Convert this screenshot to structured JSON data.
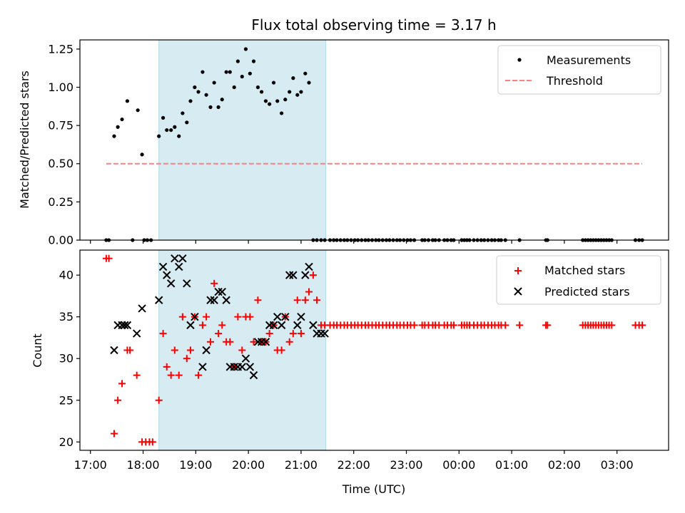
{
  "chart_data": [
    {
      "type": "scatter",
      "title": "Flux total observing time = 3.17 h",
      "xlabel": "",
      "ylabel": "Matched/Predicted stars",
      "xaxis_unit": "hours since 17:00 UTC",
      "xlim": [
        -0.2,
        10.98
      ],
      "ylim": [
        0,
        1.31
      ],
      "yticks": [
        "0.00",
        "0.25",
        "0.50",
        "0.75",
        "1.00",
        "1.25"
      ],
      "ytick_values": [
        0,
        0.25,
        0.5,
        0.75,
        1.0,
        1.25
      ],
      "shaded_span": [
        1.3,
        4.47
      ],
      "shade_color": "#add8e6",
      "legend_position": "top-right",
      "series": [
        {
          "name": "Measurements",
          "marker": "dot",
          "color": "#000000",
          "x": [
            0.3,
            0.35,
            0.45,
            0.52,
            0.6,
            0.7,
            0.8,
            0.9,
            0.98,
            1.02,
            1.08,
            1.15,
            1.3,
            1.38,
            1.45,
            1.53,
            1.6,
            1.68,
            1.75,
            1.83,
            1.9,
            1.98,
            2.05,
            2.13,
            2.2,
            2.28,
            2.35,
            2.43,
            2.5,
            2.58,
            2.65,
            2.73,
            2.8,
            2.88,
            2.95,
            3.03,
            3.1,
            3.18,
            3.25,
            3.33,
            3.4,
            3.48,
            3.55,
            3.63,
            3.7,
            3.78,
            3.85,
            3.93,
            4.0,
            4.08,
            4.15,
            4.23,
            4.3,
            4.38,
            4.45,
            4.55,
            4.62,
            4.68,
            4.75,
            4.82,
            4.88,
            4.95,
            5.02,
            5.08,
            5.15,
            5.22,
            5.28,
            5.35,
            5.42,
            5.48,
            5.55,
            5.62,
            5.68,
            5.75,
            5.82,
            5.88,
            5.95,
            6.02,
            6.08,
            6.15,
            6.3,
            6.35,
            6.42,
            6.5,
            6.55,
            6.62,
            6.72,
            6.78,
            6.85,
            6.9,
            7.05,
            7.1,
            7.15,
            7.2,
            7.28,
            7.35,
            7.42,
            7.48,
            7.55,
            7.62,
            7.68,
            7.75,
            7.8,
            7.88,
            8.15,
            8.65,
            8.68,
            9.35,
            9.4,
            9.45,
            9.5,
            9.55,
            9.6,
            9.65,
            9.7,
            9.75,
            9.8,
            9.85,
            9.9,
            10.35,
            10.42,
            10.48
          ],
          "y": [
            0,
            0,
            0.68,
            0.74,
            0.79,
            0.91,
            0,
            0.85,
            0.56,
            0,
            0,
            0,
            0.68,
            0.8,
            0.72,
            0.72,
            0.74,
            0.68,
            0.83,
            0.77,
            0.91,
            1.0,
            0.97,
            1.1,
            0.95,
            0.87,
            1.03,
            0.87,
            0.92,
            1.1,
            1.1,
            1.0,
            1.17,
            1.07,
            1.25,
            1.09,
            1.17,
            1.0,
            0.97,
            0.91,
            0.89,
            1.03,
            0.91,
            0.83,
            0.92,
            0.97,
            1.06,
            0.95,
            0.97,
            1.09,
            1.03,
            0,
            0,
            0,
            0,
            0,
            0,
            0,
            0,
            0,
            0,
            0,
            0,
            0,
            0,
            0,
            0,
            0,
            0,
            0,
            0,
            0,
            0,
            0,
            0,
            0,
            0,
            0,
            0,
            0,
            0,
            0,
            0,
            0,
            0,
            0,
            0,
            0,
            0,
            0,
            0,
            0,
            0,
            0,
            0,
            0,
            0,
            0,
            0,
            0,
            0,
            0,
            0,
            0,
            0,
            0,
            0,
            0,
            0,
            0,
            0,
            0,
            0,
            0,
            0,
            0,
            0,
            0,
            0,
            0,
            0,
            0
          ]
        },
        {
          "name": "Threshold",
          "marker": "dashed-line",
          "color": "#ff8080",
          "x": [
            0.3,
            10.48
          ],
          "y": [
            0.5,
            0.5
          ]
        }
      ]
    },
    {
      "type": "scatter",
      "title": "",
      "xlabel": "Time (UTC)",
      "ylabel": "Count",
      "xaxis_unit": "hours since 17:00 UTC",
      "xlim": [
        -0.2,
        10.98
      ],
      "ylim": [
        19,
        43
      ],
      "yticks": [
        "20",
        "25",
        "30",
        "35",
        "40"
      ],
      "ytick_values": [
        20,
        25,
        30,
        35,
        40
      ],
      "xticks": [
        "17:00",
        "18:00",
        "19:00",
        "20:00",
        "21:00",
        "22:00",
        "23:00",
        "00:00",
        "01:00",
        "02:00",
        "03:00"
      ],
      "xtick_values": [
        0,
        1,
        2,
        3,
        4,
        5,
        6,
        7,
        8,
        9,
        10
      ],
      "shaded_span": [
        1.3,
        4.47
      ],
      "shade_color": "#add8e6",
      "legend_position": "top-right",
      "series": [
        {
          "name": "Matched stars",
          "marker": "plus",
          "color": "#ff0000",
          "x": [
            0.3,
            0.35,
            0.45,
            0.52,
            0.6,
            0.7,
            0.75,
            0.88,
            0.98,
            1.05,
            1.12,
            1.18,
            1.3,
            1.38,
            1.45,
            1.53,
            1.6,
            1.68,
            1.75,
            1.83,
            1.9,
            1.98,
            2.05,
            2.13,
            2.2,
            2.28,
            2.35,
            2.43,
            2.5,
            2.58,
            2.65,
            2.73,
            2.8,
            2.88,
            2.95,
            3.03,
            3.1,
            3.18,
            3.25,
            3.33,
            3.4,
            3.48,
            3.55,
            3.63,
            3.7,
            3.78,
            3.85,
            3.93,
            4.0,
            4.08,
            4.15,
            4.23,
            4.3,
            4.38,
            4.45,
            4.55,
            4.62,
            4.68,
            4.75,
            4.82,
            4.88,
            4.95,
            5.02,
            5.08,
            5.15,
            5.22,
            5.28,
            5.35,
            5.42,
            5.48,
            5.55,
            5.62,
            5.68,
            5.75,
            5.82,
            5.88,
            5.95,
            6.02,
            6.08,
            6.15,
            6.3,
            6.35,
            6.42,
            6.5,
            6.55,
            6.62,
            6.72,
            6.78,
            6.85,
            6.9,
            7.05,
            7.1,
            7.15,
            7.2,
            7.28,
            7.35,
            7.42,
            7.48,
            7.55,
            7.62,
            7.68,
            7.75,
            7.8,
            7.88,
            8.15,
            8.65,
            8.68,
            9.35,
            9.4,
            9.45,
            9.5,
            9.55,
            9.6,
            9.65,
            9.7,
            9.75,
            9.8,
            9.85,
            9.9,
            10.35,
            10.42,
            10.48
          ],
          "y": [
            42,
            42,
            21,
            25,
            27,
            31,
            31,
            28,
            20,
            20,
            20,
            20,
            25,
            33,
            29,
            28,
            31,
            28,
            35,
            30,
            31,
            35,
            28,
            34,
            35,
            32,
            39,
            33,
            34,
            32,
            32,
            29,
            35,
            31,
            35,
            35,
            32,
            37,
            32,
            32,
            33,
            34,
            31,
            31,
            35,
            32,
            33,
            37,
            33,
            37,
            38,
            40,
            37,
            34,
            34,
            34,
            34,
            34,
            34,
            34,
            34,
            34,
            34,
            34,
            34,
            34,
            34,
            34,
            34,
            34,
            34,
            34,
            34,
            34,
            34,
            34,
            34,
            34,
            34,
            34,
            34,
            34,
            34,
            34,
            34,
            34,
            34,
            34,
            34,
            34,
            34,
            34,
            34,
            34,
            34,
            34,
            34,
            34,
            34,
            34,
            34,
            34,
            34,
            34,
            34,
            34,
            34,
            34,
            34,
            34,
            34,
            34,
            34,
            34,
            34,
            34,
            34,
            34,
            34,
            34,
            34,
            34
          ]
        },
        {
          "name": "Predicted stars",
          "marker": "x",
          "color": "#000000",
          "x": [
            0.45,
            0.52,
            0.6,
            0.65,
            0.7,
            0.88,
            0.98,
            1.3,
            1.38,
            1.45,
            1.53,
            1.6,
            1.68,
            1.75,
            1.83,
            1.9,
            1.98,
            2.13,
            2.2,
            2.28,
            2.35,
            2.43,
            2.5,
            2.58,
            2.65,
            2.73,
            2.8,
            2.88,
            2.95,
            3.03,
            3.1,
            3.18,
            3.25,
            3.33,
            3.4,
            3.48,
            3.55,
            3.63,
            3.7,
            3.78,
            3.85,
            3.93,
            4.0,
            4.08,
            4.15,
            4.23,
            4.3,
            4.38,
            4.45
          ],
          "y": [
            31,
            34,
            34,
            34,
            34,
            33,
            36,
            37,
            41,
            40,
            39,
            42,
            41,
            42,
            39,
            34,
            35,
            29,
            31,
            37,
            37,
            38,
            38,
            37,
            29,
            29,
            29,
            29,
            30,
            29,
            28,
            32,
            32,
            32,
            34,
            34,
            35,
            34,
            35,
            40,
            40,
            34,
            35,
            40,
            41,
            34,
            33,
            33,
            33
          ]
        }
      ]
    }
  ]
}
